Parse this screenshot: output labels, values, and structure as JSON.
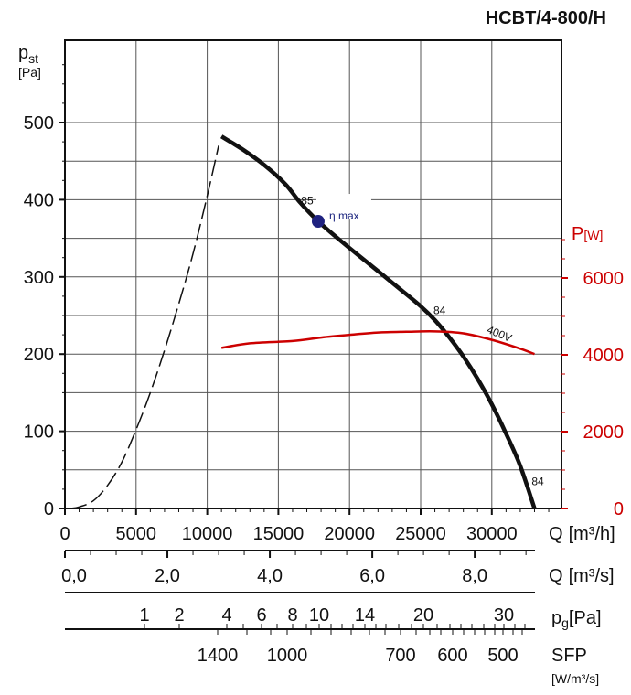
{
  "chart_data": {
    "type": "line",
    "title": "HCBT/4-800/H",
    "y_axis": {
      "label": "p",
      "label_sub": "st",
      "unit": "[Pa]",
      "range": [
        0,
        500
      ],
      "ticks": [
        "0",
        "100",
        "200",
        "300",
        "400",
        "500"
      ]
    },
    "y2_axis": {
      "label": "P",
      "unit": "[W]",
      "range": [
        0,
        6000
      ],
      "ticks": [
        "0",
        "2000",
        "4000",
        "6000"
      ],
      "color": "#cc0000"
    },
    "x_axis": {
      "label": "Q",
      "unit": "[m³/h]",
      "range": [
        0,
        35000
      ],
      "ticks": [
        "0",
        "5000",
        "10000",
        "15000",
        "20000",
        "25000",
        "30000"
      ]
    },
    "x_axis_ms": {
      "label": "Q",
      "unit": "[m³/s]",
      "ticks": [
        {
          "v": 0.0,
          "t": "0,0"
        },
        {
          "v": 2.0,
          "t": "2,0"
        },
        {
          "v": 4.0,
          "t": "4,0"
        },
        {
          "v": 6.0,
          "t": "6,0"
        },
        {
          "v": 8.0,
          "t": "8,0"
        }
      ]
    },
    "x_axis_pg": {
      "label": "p",
      "label_sub": "g",
      "unit": "[Pa]",
      "ticks": [
        {
          "v": 1,
          "t": "1"
        },
        {
          "v": 2,
          "t": "2"
        },
        {
          "v": 4,
          "t": "4"
        },
        {
          "v": 6,
          "t": "6"
        },
        {
          "v": 8,
          "t": "8"
        },
        {
          "v": 10,
          "t": "10"
        },
        {
          "v": 14,
          "t": "14"
        },
        {
          "v": 20,
          "t": "20"
        },
        {
          "v": 30,
          "t": "30"
        }
      ]
    },
    "x_axis_sfp": {
      "label": "SFP",
      "unit": "[W/m³/s]",
      "ticks": [
        {
          "v": 1400,
          "t": "1400"
        },
        {
          "v": 1000,
          "t": "1000"
        },
        {
          "v": 700,
          "t": "700"
        },
        {
          "v": 600,
          "t": "600"
        },
        {
          "v": 500,
          "t": "500"
        }
      ]
    },
    "grid": true,
    "series": [
      {
        "role": "pressure",
        "color": "#111111",
        "q": [
          11000,
          12500,
          14000,
          15500,
          16500,
          17800,
          19500,
          21500,
          23500,
          25000,
          26000,
          27000,
          28000,
          29000,
          30000,
          31000,
          32000,
          33000
        ],
        "p": [
          482,
          465,
          445,
          420,
          397,
          372,
          345,
          315,
          285,
          262,
          244,
          222,
          197,
          168,
          135,
          97,
          55,
          0
        ]
      },
      {
        "role": "pressure-unstable",
        "style": "dashed",
        "color": "#111111",
        "q": [
          1000,
          2000,
          3000,
          4000,
          5000,
          6000,
          7000,
          8000,
          9000,
          10000,
          10800
        ],
        "p": [
          2,
          10,
          30,
          60,
          102,
          150,
          205,
          265,
          330,
          405,
          470
        ]
      },
      {
        "role": "power",
        "name": "400V",
        "color": "#cc0000",
        "q": [
          11000,
          13000,
          16000,
          18000,
          20000,
          22000,
          24000,
          26000,
          28000,
          30000,
          32000,
          33000
        ],
        "w": [
          4180,
          4300,
          4360,
          4450,
          4520,
          4580,
          4600,
          4610,
          4560,
          4390,
          4160,
          4020
        ]
      }
    ],
    "annotations": [
      {
        "text": "η max",
        "q": 17800,
        "p": 372,
        "marker": true,
        "marker_color": "#1f2280"
      },
      {
        "text": "85",
        "q": 16600,
        "p": 394
      },
      {
        "text": "84",
        "q": 25900,
        "p": 252
      },
      {
        "text": "84",
        "q": 32800,
        "p": 30
      }
    ]
  }
}
